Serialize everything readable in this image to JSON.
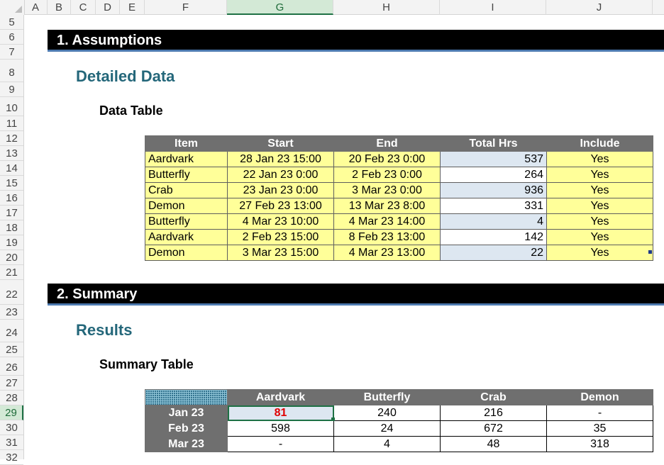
{
  "columns": [
    "A",
    "B",
    "C",
    "D",
    "E",
    "F",
    "G",
    "H",
    "I",
    "J"
  ],
  "rows": [
    "5",
    "6",
    "7",
    "8",
    "9",
    "10",
    "11",
    "12",
    "13",
    "14",
    "15",
    "16",
    "17",
    "18",
    "19",
    "20",
    "21",
    "22",
    "23",
    "24",
    "25",
    "26",
    "27",
    "28",
    "29",
    "30",
    "31",
    "32"
  ],
  "selected_column": "G",
  "selected_row": "29",
  "section1": {
    "title": "1. Assumptions",
    "heading": "Detailed Data",
    "subheading": "Data Table"
  },
  "section2": {
    "title": "2. Summary",
    "heading": "Results",
    "subheading": "Summary Table"
  },
  "data_table": {
    "headers": [
      "Item",
      "Start",
      "End",
      "Total Hrs",
      "Include"
    ],
    "rows": [
      [
        "Aardvark",
        "28 Jan 23 15:00",
        "20 Feb 23 0:00",
        "537",
        "Yes"
      ],
      [
        "Butterfly",
        "22 Jan 23 0:00",
        "2 Feb 23 0:00",
        "264",
        "Yes"
      ],
      [
        "Crab",
        "23 Jan 23 0:00",
        "3 Mar 23 0:00",
        "936",
        "Yes"
      ],
      [
        "Demon",
        "27 Feb 23 13:00",
        "13 Mar 23 8:00",
        "331",
        "Yes"
      ],
      [
        "Butterfly",
        "4 Mar 23 10:00",
        "4 Mar 23 14:00",
        "4",
        "Yes"
      ],
      [
        "Aardvark",
        "2 Feb 23 15:00",
        "8 Feb 23 13:00",
        "142",
        "Yes"
      ],
      [
        "Demon",
        "3 Mar 23 15:00",
        "4 Mar 23 13:00",
        "22",
        "Yes"
      ]
    ]
  },
  "summary_table": {
    "headers": [
      "Aardvark",
      "Butterfly",
      "Crab",
      "Demon"
    ],
    "rows": [
      {
        "label": "Jan 23",
        "values": [
          "81",
          "240",
          "216",
          "-"
        ]
      },
      {
        "label": "Feb 23",
        "values": [
          "598",
          "24",
          "672",
          "35"
        ]
      },
      {
        "label": "Mar 23",
        "values": [
          "-",
          "4",
          "48",
          "318"
        ]
      }
    ]
  },
  "colors": {
    "banner": "#000000",
    "banner_rule": "#4d7ab0",
    "heading": "#24677a",
    "header_fill": "#6f6f6f",
    "input_fill": "#ffff99",
    "calc_fill": "#dde7f1",
    "active_value": "#e00000",
    "selection": "#1e7145"
  }
}
